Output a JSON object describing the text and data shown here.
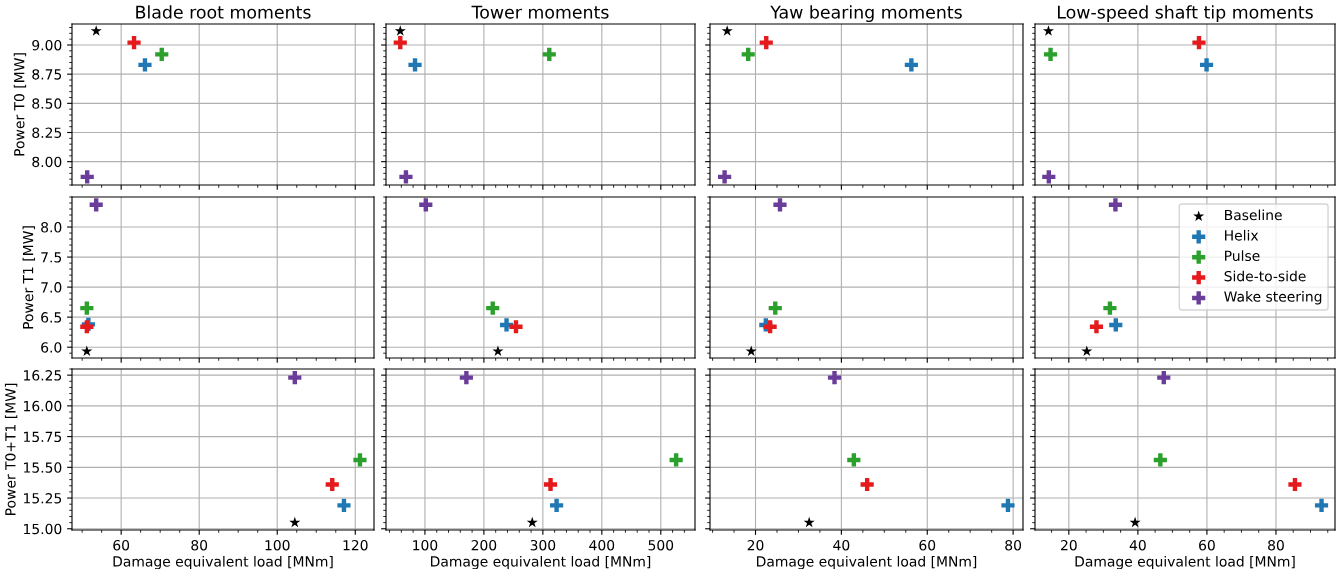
{
  "chart_data": [
    {
      "type": "scatter",
      "title": "Blade root moments",
      "ylabel": "Power T0 [MW]",
      "xlim": [
        47.4,
        124.8
      ],
      "xticks": [
        60,
        80,
        100,
        120
      ],
      "ylim": [
        7.8,
        9.18
      ],
      "yticks": [
        {
          "value": 8.0,
          "label": "8.00"
        },
        {
          "value": 8.25,
          "label": "8.25"
        },
        {
          "value": 8.5,
          "label": "8.50"
        },
        {
          "value": 8.75,
          "label": "8.75"
        },
        {
          "value": 9.0,
          "label": "9.00"
        }
      ],
      "grid": true,
      "tick_labels": "y",
      "series": [
        {
          "color": "#000000",
          "marker": "star",
          "x": [
            53.6
          ],
          "values": [
            9.12
          ]
        },
        {
          "color": "#1f77b4",
          "marker": "cross",
          "x": [
            66.1
          ],
          "values": [
            8.83
          ]
        },
        {
          "color": "#2ca02c",
          "marker": "cross",
          "x": [
            70.4
          ],
          "values": [
            8.92
          ]
        },
        {
          "color": "#e41a1c",
          "marker": "cross",
          "x": [
            63.3
          ],
          "values": [
            9.02
          ]
        },
        {
          "color": "#6a3d9a",
          "marker": "cross",
          "x": [
            51.3
          ],
          "values": [
            7.87
          ]
        }
      ]
    },
    {
      "type": "scatter",
      "title": "Tower moments",
      "xlim": [
        34,
        558
      ],
      "xticks": [
        100,
        200,
        300,
        400,
        500
      ],
      "ylim": [
        7.8,
        9.18
      ],
      "yticks": [
        {
          "value": 8.0,
          "label": null
        },
        {
          "value": 8.25,
          "label": null
        },
        {
          "value": 8.5,
          "label": null
        },
        {
          "value": 8.75,
          "label": null
        },
        {
          "value": 9.0,
          "label": null
        }
      ],
      "grid": true,
      "tick_labels": false,
      "series": [
        {
          "color": "#000000",
          "marker": "star",
          "x": [
            58.2
          ],
          "values": [
            9.12
          ]
        },
        {
          "color": "#1f77b4",
          "marker": "cross",
          "x": [
            83.2
          ],
          "values": [
            8.83
          ]
        },
        {
          "color": "#2ca02c",
          "marker": "cross",
          "x": [
            310.9
          ],
          "values": [
            8.92
          ]
        },
        {
          "color": "#e41a1c",
          "marker": "cross",
          "x": [
            58.2
          ],
          "values": [
            9.02
          ]
        },
        {
          "color": "#6a3d9a",
          "marker": "cross",
          "x": [
            67.8
          ],
          "values": [
            7.87
          ]
        }
      ]
    },
    {
      "type": "scatter",
      "title": "Yaw bearing moments",
      "xlim": [
        9.4,
        82.3
      ],
      "xticks": [
        20,
        40,
        60,
        80
      ],
      "ylim": [
        7.8,
        9.18
      ],
      "yticks": [
        {
          "value": 8.0,
          "label": null
        },
        {
          "value": 8.25,
          "label": null
        },
        {
          "value": 8.5,
          "label": null
        },
        {
          "value": 8.75,
          "label": null
        },
        {
          "value": 9.0,
          "label": null
        }
      ],
      "grid": true,
      "tick_labels": false,
      "series": [
        {
          "color": "#000000",
          "marker": "star",
          "x": [
            13.4
          ],
          "values": [
            9.12
          ]
        },
        {
          "color": "#1f77b4",
          "marker": "cross",
          "x": [
            56.3
          ],
          "values": [
            8.83
          ]
        },
        {
          "color": "#2ca02c",
          "marker": "cross",
          "x": [
            18.3
          ],
          "values": [
            8.92
          ]
        },
        {
          "color": "#e41a1c",
          "marker": "cross",
          "x": [
            22.5
          ],
          "values": [
            9.02
          ]
        },
        {
          "color": "#6a3d9a",
          "marker": "cross",
          "x": [
            12.8
          ],
          "values": [
            7.87
          ]
        }
      ]
    },
    {
      "type": "scatter",
      "title": "Low-speed shaft tip moments",
      "xlim": [
        10.2,
        97.1
      ],
      "xticks": [
        20,
        40,
        60,
        80
      ],
      "ylim": [
        7.8,
        9.18
      ],
      "yticks": [
        {
          "value": 8.0,
          "label": null
        },
        {
          "value": 8.25,
          "label": null
        },
        {
          "value": 8.5,
          "label": null
        },
        {
          "value": 8.75,
          "label": null
        },
        {
          "value": 9.0,
          "label": null
        }
      ],
      "grid": true,
      "tick_labels": false,
      "series": [
        {
          "color": "#000000",
          "marker": "star",
          "x": [
            14.1
          ],
          "values": [
            9.12
          ]
        },
        {
          "color": "#1f77b4",
          "marker": "cross",
          "x": [
            59.9
          ],
          "values": [
            8.83
          ]
        },
        {
          "color": "#2ca02c",
          "marker": "cross",
          "x": [
            14.7
          ],
          "values": [
            8.92
          ]
        },
        {
          "color": "#e41a1c",
          "marker": "cross",
          "x": [
            57.7
          ],
          "values": [
            9.02
          ]
        },
        {
          "color": "#6a3d9a",
          "marker": "cross",
          "x": [
            14.2
          ],
          "values": [
            7.87
          ]
        }
      ]
    },
    {
      "type": "scatter",
      "ylabel": "Power T1 [MW]",
      "xlim": [
        47.4,
        124.8
      ],
      "xticks": [
        60,
        80,
        100,
        120
      ],
      "ylim": [
        5.82,
        8.5
      ],
      "yticks": [
        {
          "value": 6.0,
          "label": "6.0"
        },
        {
          "value": 6.5,
          "label": "6.5"
        },
        {
          "value": 7.0,
          "label": "7.0"
        },
        {
          "value": 7.5,
          "label": "7.5"
        },
        {
          "value": 8.0,
          "label": "8.0"
        }
      ],
      "grid": true,
      "tick_labels": "y",
      "series": [
        {
          "color": "#000000",
          "marker": "star",
          "x": [
            51.2
          ],
          "values": [
            5.93
          ]
        },
        {
          "color": "#1f77b4",
          "marker": "cross",
          "x": [
            51.6
          ],
          "values": [
            6.38
          ]
        },
        {
          "color": "#2ca02c",
          "marker": "cross",
          "x": [
            51.2
          ],
          "values": [
            6.65
          ]
        },
        {
          "color": "#e41a1c",
          "marker": "cross",
          "x": [
            51.2
          ],
          "values": [
            6.34
          ]
        },
        {
          "color": "#6a3d9a",
          "marker": "cross",
          "x": [
            53.6
          ],
          "values": [
            8.37
          ]
        }
      ]
    },
    {
      "type": "scatter",
      "xlim": [
        34,
        558
      ],
      "xticks": [
        100,
        200,
        300,
        400,
        500
      ],
      "ylim": [
        5.82,
        8.5
      ],
      "yticks": [
        {
          "value": 6.0,
          "label": null
        },
        {
          "value": 6.5,
          "label": null
        },
        {
          "value": 7.0,
          "label": null
        },
        {
          "value": 7.5,
          "label": null
        },
        {
          "value": 8.0,
          "label": null
        }
      ],
      "grid": true,
      "tick_labels": false,
      "series": [
        {
          "color": "#000000",
          "marker": "star",
          "x": [
            223.8
          ],
          "values": [
            5.93
          ]
        },
        {
          "color": "#1f77b4",
          "marker": "cross",
          "x": [
            238.4
          ],
          "values": [
            6.37
          ]
        },
        {
          "color": "#2ca02c",
          "marker": "cross",
          "x": [
            215
          ],
          "values": [
            6.65
          ]
        },
        {
          "color": "#e41a1c",
          "marker": "cross",
          "x": [
            254.4
          ],
          "values": [
            6.34
          ]
        },
        {
          "color": "#6a3d9a",
          "marker": "cross",
          "x": [
            101.5
          ],
          "values": [
            8.37
          ]
        }
      ]
    },
    {
      "type": "scatter",
      "xlim": [
        9.4,
        82.3
      ],
      "xticks": [
        20,
        40,
        60,
        80
      ],
      "ylim": [
        5.82,
        8.5
      ],
      "yticks": [
        {
          "value": 6.0,
          "label": null
        },
        {
          "value": 6.5,
          "label": null
        },
        {
          "value": 7.0,
          "label": null
        },
        {
          "value": 7.5,
          "label": null
        },
        {
          "value": 8.0,
          "label": null
        }
      ],
      "grid": true,
      "tick_labels": false,
      "series": [
        {
          "color": "#000000",
          "marker": "star",
          "x": [
            19.0
          ],
          "values": [
            5.93
          ]
        },
        {
          "color": "#1f77b4",
          "marker": "cross",
          "x": [
            22.4
          ],
          "values": [
            6.37
          ]
        },
        {
          "color": "#2ca02c",
          "marker": "cross",
          "x": [
            24.6
          ],
          "values": [
            6.65
          ]
        },
        {
          "color": "#e41a1c",
          "marker": "cross",
          "x": [
            23.4
          ],
          "values": [
            6.34
          ]
        },
        {
          "color": "#6a3d9a",
          "marker": "cross",
          "x": [
            25.7
          ],
          "values": [
            8.37
          ]
        }
      ]
    },
    {
      "type": "scatter",
      "xlim": [
        10.2,
        97.1
      ],
      "xticks": [
        20,
        40,
        60,
        80
      ],
      "ylim": [
        5.82,
        8.5
      ],
      "yticks": [
        {
          "value": 6.0,
          "label": null
        },
        {
          "value": 6.5,
          "label": null
        },
        {
          "value": 7.0,
          "label": null
        },
        {
          "value": 7.5,
          "label": null
        },
        {
          "value": 8.0,
          "label": null
        }
      ],
      "grid": true,
      "tick_labels": false,
      "legend": "top right",
      "series": [
        {
          "name": "Baseline",
          "color": "#000000",
          "marker": "star",
          "x": [
            25.2
          ],
          "values": [
            5.93
          ]
        },
        {
          "name": "Helix",
          "color": "#1f77b4",
          "marker": "cross",
          "x": [
            33.6
          ],
          "values": [
            6.37
          ]
        },
        {
          "name": "Pulse",
          "color": "#2ca02c",
          "marker": "cross",
          "x": [
            31.9
          ],
          "values": [
            6.65
          ]
        },
        {
          "name": "Side-to-side",
          "color": "#e41a1c",
          "marker": "cross",
          "x": [
            28.0
          ],
          "values": [
            6.34
          ]
        },
        {
          "name": "Wake steering",
          "color": "#6a3d9a",
          "marker": "cross",
          "x": [
            33.5
          ],
          "values": [
            8.37
          ]
        }
      ]
    },
    {
      "type": "scatter",
      "xlabel": "Damage equivalent load [MNm]",
      "ylabel": "Power T0+T1 [MW]",
      "xlim": [
        47.4,
        124.8
      ],
      "xticks": [
        60,
        80,
        100,
        120
      ],
      "ylim": [
        14.99,
        16.3
      ],
      "yticks": [
        {
          "value": 15.0,
          "label": "15.00"
        },
        {
          "value": 15.25,
          "label": "15.25"
        },
        {
          "value": 15.5,
          "label": "15.50"
        },
        {
          "value": 15.75,
          "label": "15.75"
        },
        {
          "value": 16.0,
          "label": "16.00"
        },
        {
          "value": 16.25,
          "label": "16.25"
        }
      ],
      "grid": true,
      "series": [
        {
          "color": "#000000",
          "marker": "star",
          "x": [
            104.5
          ],
          "values": [
            15.05
          ]
        },
        {
          "color": "#1f77b4",
          "marker": "cross",
          "x": [
            117.1
          ],
          "values": [
            15.19
          ]
        },
        {
          "color": "#2ca02c",
          "marker": "cross",
          "x": [
            121.2
          ],
          "values": [
            15.56
          ]
        },
        {
          "color": "#e41a1c",
          "marker": "cross",
          "x": [
            114.1
          ],
          "values": [
            15.36
          ]
        },
        {
          "color": "#6a3d9a",
          "marker": "cross",
          "x": [
            104.5
          ],
          "values": [
            16.23
          ]
        }
      ]
    },
    {
      "type": "scatter",
      "xlabel": "Damage equivalent load [MNm]",
      "xlim": [
        34,
        558
      ],
      "xticks": [
        100,
        200,
        300,
        400,
        500
      ],
      "ylim": [
        14.99,
        16.3
      ],
      "yticks": [
        {
          "value": 15.0,
          "label": null
        },
        {
          "value": 15.25,
          "label": null
        },
        {
          "value": 15.5,
          "label": null
        },
        {
          "value": 15.75,
          "label": null
        },
        {
          "value": 16.0,
          "label": null
        },
        {
          "value": 16.25,
          "label": null
        }
      ],
      "grid": true,
      "tick_labels": "x",
      "series": [
        {
          "color": "#000000",
          "marker": "star",
          "x": [
            282
          ],
          "values": [
            15.05
          ]
        },
        {
          "color": "#1f77b4",
          "marker": "cross",
          "x": [
            323.3
          ],
          "values": [
            15.19
          ]
        },
        {
          "color": "#2ca02c",
          "marker": "cross",
          "x": [
            526
          ],
          "values": [
            15.56
          ]
        },
        {
          "color": "#e41a1c",
          "marker": "cross",
          "x": [
            313
          ],
          "values": [
            15.36
          ]
        },
        {
          "color": "#6a3d9a",
          "marker": "cross",
          "x": [
            170.3
          ],
          "values": [
            16.23
          ]
        }
      ]
    },
    {
      "type": "scatter",
      "xlabel": "Damage equivalent load [MNm]",
      "xlim": [
        9.4,
        82.3
      ],
      "xticks": [
        20,
        40,
        60,
        80
      ],
      "ylim": [
        14.99,
        16.3
      ],
      "yticks": [
        {
          "value": 15.0,
          "label": null
        },
        {
          "value": 15.25,
          "label": null
        },
        {
          "value": 15.5,
          "label": null
        },
        {
          "value": 15.75,
          "label": null
        },
        {
          "value": 16.0,
          "label": null
        },
        {
          "value": 16.25,
          "label": null
        }
      ],
      "grid": true,
      "tick_labels": "x",
      "series": [
        {
          "color": "#000000",
          "marker": "star",
          "x": [
            32.5
          ],
          "values": [
            15.05
          ]
        },
        {
          "color": "#1f77b4",
          "marker": "cross",
          "x": [
            78.8
          ],
          "values": [
            15.19
          ]
        },
        {
          "color": "#2ca02c",
          "marker": "cross",
          "x": [
            42.9
          ],
          "values": [
            15.56
          ]
        },
        {
          "color": "#e41a1c",
          "marker": "cross",
          "x": [
            46.0
          ],
          "values": [
            15.36
          ]
        },
        {
          "color": "#6a3d9a",
          "marker": "cross",
          "x": [
            38.4
          ],
          "values": [
            16.23
          ]
        }
      ]
    },
    {
      "type": "scatter",
      "xlabel": "Damage equivalent load [MNm]",
      "xlim": [
        10.2,
        97.1
      ],
      "xticks": [
        20,
        40,
        60,
        80
      ],
      "ylim": [
        14.99,
        16.3
      ],
      "yticks": [
        {
          "value": 15.0,
          "label": null
        },
        {
          "value": 15.25,
          "label": null
        },
        {
          "value": 15.5,
          "label": null
        },
        {
          "value": 15.75,
          "label": null
        },
        {
          "value": 16.0,
          "label": null
        },
        {
          "value": 16.25,
          "label": null
        }
      ],
      "grid": true,
      "tick_labels": "x",
      "series": [
        {
          "color": "#000000",
          "marker": "star",
          "x": [
            39.2
          ],
          "values": [
            15.05
          ]
        },
        {
          "color": "#1f77b4",
          "marker": "cross",
          "x": [
            93.2
          ],
          "values": [
            15.19
          ]
        },
        {
          "color": "#2ca02c",
          "marker": "cross",
          "x": [
            46.5
          ],
          "values": [
            15.56
          ]
        },
        {
          "color": "#e41a1c",
          "marker": "cross",
          "x": [
            85.5
          ],
          "values": [
            15.36
          ]
        },
        {
          "color": "#6a3d9a",
          "marker": "cross",
          "x": [
            47.5
          ],
          "values": [
            16.23
          ]
        }
      ]
    }
  ]
}
